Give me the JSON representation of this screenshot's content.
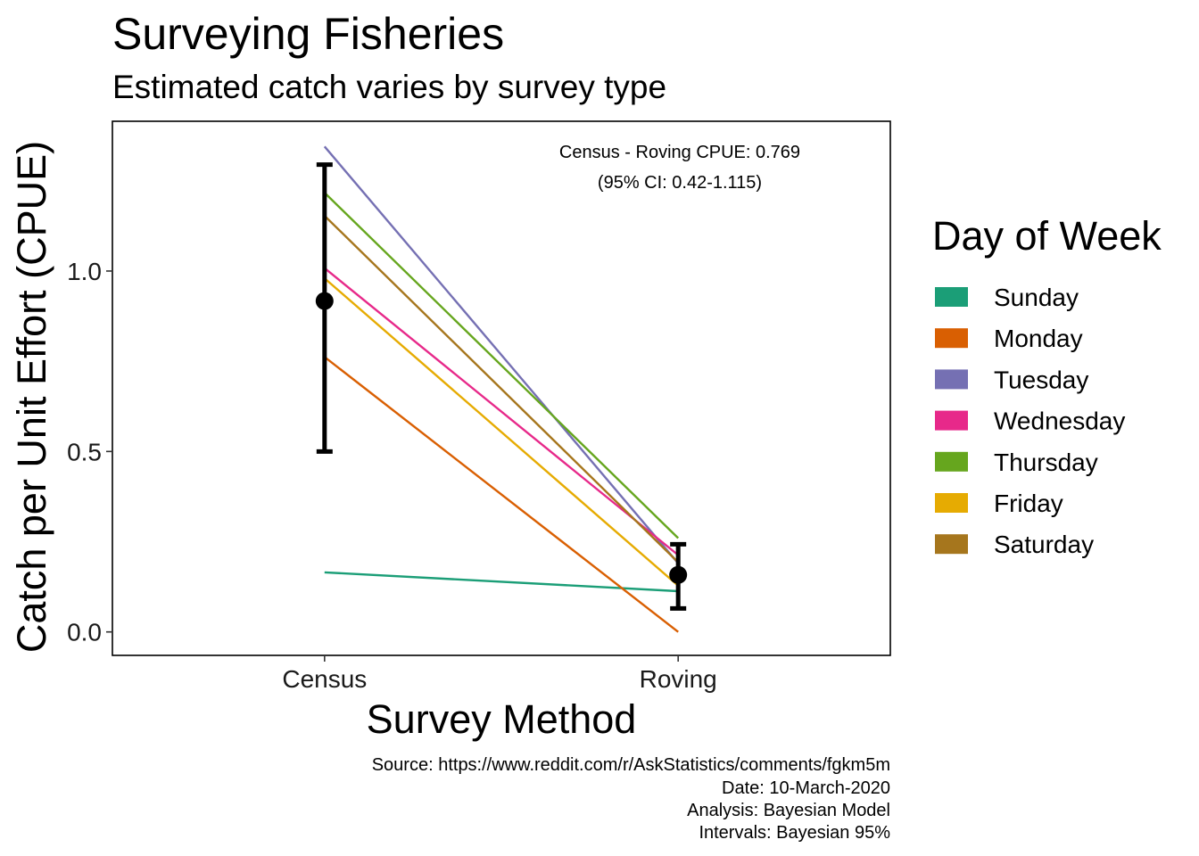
{
  "title": "Surveying Fisheries",
  "subtitle": "Estimated catch varies by survey type",
  "annotation": {
    "line1": "Census - Roving CPUE: 0.769",
    "line2": "(95% CI: 0.42-1.115)"
  },
  "caption": [
    "Source: https://www.reddit.com/r/AskStatistics/comments/fgkm5m",
    "Date: 10-March-2020",
    "Analysis: Bayesian Model",
    "Intervals: Bayesian 95%"
  ],
  "chart_data": {
    "type": "line",
    "title": "Surveying Fisheries",
    "subtitle": "Estimated catch varies by survey type",
    "xlabel": "Survey Method",
    "ylabel": "Catch per Unit Effort (CPUE)",
    "categories": [
      "Census",
      "Roving"
    ],
    "xlim": [
      0.4,
      2.6
    ],
    "ylim": [
      -0.065,
      1.415
    ],
    "y_ticks": [
      0.0,
      0.5,
      1.0
    ],
    "y_tick_labels": [
      "0.0",
      "0.5",
      "1.0"
    ],
    "grid": false,
    "legend": {
      "title": "Day of Week",
      "position": "right"
    },
    "series": [
      {
        "name": "Sunday",
        "color": "#1B9E77",
        "values": [
          0.165,
          0.113
        ]
      },
      {
        "name": "Monday",
        "color": "#D95F02",
        "values": [
          0.762,
          0.0
        ]
      },
      {
        "name": "Tuesday",
        "color": "#7570B3",
        "values": [
          1.345,
          0.19
        ]
      },
      {
        "name": "Wednesday",
        "color": "#E7298A",
        "values": [
          1.008,
          0.213
        ]
      },
      {
        "name": "Thursday",
        "color": "#66A61E",
        "values": [
          1.217,
          0.26
        ]
      },
      {
        "name": "Friday",
        "color": "#E6AB02",
        "values": [
          0.98,
          0.128
        ]
      },
      {
        "name": "Saturday",
        "color": "#A6761D",
        "values": [
          1.153,
          0.193
        ]
      }
    ],
    "summary": [
      {
        "category": "Census",
        "mean": 0.917,
        "lower": 0.5,
        "upper": 1.295
      },
      {
        "category": "Roving",
        "mean": 0.158,
        "lower": 0.065,
        "upper": 0.243
      }
    ]
  }
}
